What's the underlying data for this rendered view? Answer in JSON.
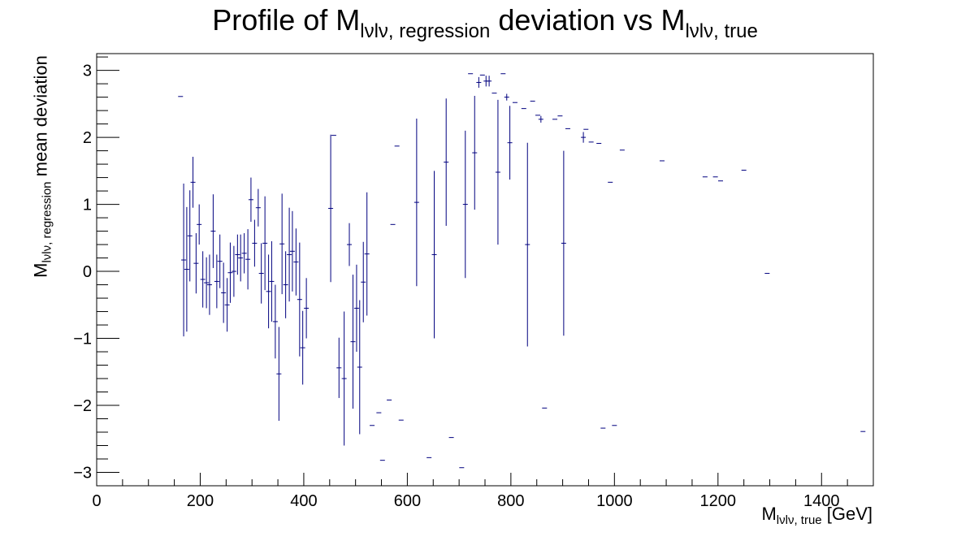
{
  "chart_data": {
    "type": "scatter",
    "title_main": "Profile of M",
    "title_sub1": "lνlν, regression",
    "title_mid": " deviation vs M",
    "title_sub2": "lνlν, true",
    "xlabel_main": "M",
    "xlabel_sub": "lνlν, true",
    "xlabel_unit": " [GeV]",
    "ylabel_main": "M",
    "ylabel_sub": "lνlν, regression",
    "ylabel_tail": " mean deviation",
    "xlim": [
      0,
      1500
    ],
    "ylim": [
      -3.2,
      3.25
    ],
    "xticks": [
      0,
      200,
      400,
      600,
      800,
      1000,
      1200,
      1400
    ],
    "yticks": [
      -3,
      -2,
      -1,
      0,
      1,
      2,
      3
    ],
    "xtick_labels": [
      "0",
      "200",
      "400",
      "600",
      "800",
      "1000",
      "1200",
      "1400"
    ],
    "ytick_labels": [
      "−3",
      "−2",
      "−1",
      "0",
      "1",
      "2",
      "3"
    ],
    "marker_color": "#00007f",
    "points": [
      {
        "x": 162,
        "y": 2.61,
        "err": 0
      },
      {
        "x": 168,
        "y": 0.17,
        "err": 1.14
      },
      {
        "x": 174,
        "y": 0.03,
        "err": 0.93
      },
      {
        "x": 180,
        "y": 0.53,
        "err": 0.68
      },
      {
        "x": 186,
        "y": 1.33,
        "err": 0.38
      },
      {
        "x": 192,
        "y": 0.12,
        "err": 0.45
      },
      {
        "x": 198,
        "y": 0.7,
        "err": 0.3
      },
      {
        "x": 205,
        "y": -0.12,
        "err": 0.42
      },
      {
        "x": 212,
        "y": -0.17,
        "err": 0.38
      },
      {
        "x": 218,
        "y": -0.2,
        "err": 0.45
      },
      {
        "x": 225,
        "y": 0.6,
        "err": 0.55
      },
      {
        "x": 232,
        "y": -0.15,
        "err": 0.4
      },
      {
        "x": 238,
        "y": 0.15,
        "err": 0.4
      },
      {
        "x": 245,
        "y": -0.32,
        "err": 0.45
      },
      {
        "x": 252,
        "y": -0.5,
        "err": 0.4
      },
      {
        "x": 258,
        "y": -0.02,
        "err": 0.45
      },
      {
        "x": 265,
        "y": 0.0,
        "err": 0.38
      },
      {
        "x": 272,
        "y": 0.25,
        "err": 0.3
      },
      {
        "x": 278,
        "y": 0.2,
        "err": 0.35
      },
      {
        "x": 285,
        "y": 0.27,
        "err": 0.3
      },
      {
        "x": 292,
        "y": 0.18,
        "err": 0.45
      },
      {
        "x": 298,
        "y": 1.07,
        "err": 0.33
      },
      {
        "x": 305,
        "y": 0.42,
        "err": 0.35
      },
      {
        "x": 312,
        "y": 0.95,
        "err": 0.28
      },
      {
        "x": 318,
        "y": -0.03,
        "err": 0.45
      },
      {
        "x": 325,
        "y": 0.42,
        "err": 0.7
      },
      {
        "x": 332,
        "y": -0.3,
        "err": 0.55
      },
      {
        "x": 338,
        "y": -0.15,
        "err": 0.6
      },
      {
        "x": 345,
        "y": -0.75,
        "err": 0.55
      },
      {
        "x": 352,
        "y": -1.53,
        "err": 0.7
      },
      {
        "x": 358,
        "y": 0.41,
        "err": 0.75
      },
      {
        "x": 365,
        "y": -0.2,
        "err": 0.5
      },
      {
        "x": 372,
        "y": 0.25,
        "err": 0.7
      },
      {
        "x": 378,
        "y": 0.3,
        "err": 0.6
      },
      {
        "x": 385,
        "y": 0.14,
        "err": 0.5
      },
      {
        "x": 392,
        "y": -0.42,
        "err": 0.85
      },
      {
        "x": 398,
        "y": -1.14,
        "err": 0.55
      },
      {
        "x": 405,
        "y": -0.55,
        "err": 0.45
      },
      {
        "x": 452,
        "y": 0.94,
        "err": 1.1
      },
      {
        "x": 458,
        "y": 2.03,
        "err": 0
      },
      {
        "x": 468,
        "y": -1.44,
        "err": 0.45
      },
      {
        "x": 478,
        "y": -1.6,
        "err": 1.0
      },
      {
        "x": 488,
        "y": 0.4,
        "err": 0.32
      },
      {
        "x": 495,
        "y": -1.05,
        "err": 1.0
      },
      {
        "x": 502,
        "y": -0.55,
        "err": 0.65
      },
      {
        "x": 508,
        "y": -1.43,
        "err": 1.0
      },
      {
        "x": 515,
        "y": -0.16,
        "err": 0.6
      },
      {
        "x": 522,
        "y": 0.26,
        "err": 0.92
      },
      {
        "x": 532,
        "y": -2.3,
        "err": 0
      },
      {
        "x": 545,
        "y": -2.11,
        "err": 0
      },
      {
        "x": 552,
        "y": -2.82,
        "err": 0
      },
      {
        "x": 565,
        "y": -1.92,
        "err": 0
      },
      {
        "x": 572,
        "y": 0.7,
        "err": 0
      },
      {
        "x": 580,
        "y": 1.87,
        "err": 0
      },
      {
        "x": 588,
        "y": -2.22,
        "err": 0
      },
      {
        "x": 618,
        "y": 1.03,
        "err": 1.25
      },
      {
        "x": 642,
        "y": -2.78,
        "err": 0
      },
      {
        "x": 652,
        "y": 0.25,
        "err": 1.25
      },
      {
        "x": 675,
        "y": 1.63,
        "err": 0.95
      },
      {
        "x": 685,
        "y": -2.48,
        "err": 0
      },
      {
        "x": 705,
        "y": -2.93,
        "err": 0
      },
      {
        "x": 712,
        "y": 1.0,
        "err": 1.1
      },
      {
        "x": 722,
        "y": 2.95,
        "err": 0
      },
      {
        "x": 730,
        "y": 1.77,
        "err": 0.85
      },
      {
        "x": 738,
        "y": 2.82,
        "err": 0.08
      },
      {
        "x": 745,
        "y": 2.93,
        "err": 0
      },
      {
        "x": 752,
        "y": 2.84,
        "err": 0.08
      },
      {
        "x": 758,
        "y": 2.84,
        "err": 0.08
      },
      {
        "x": 768,
        "y": 2.66,
        "err": 0
      },
      {
        "x": 775,
        "y": 1.48,
        "err": 1.08
      },
      {
        "x": 785,
        "y": 2.95,
        "err": 0
      },
      {
        "x": 792,
        "y": 2.6,
        "err": 0.05
      },
      {
        "x": 798,
        "y": 1.92,
        "err": 0.55
      },
      {
        "x": 808,
        "y": 2.52,
        "err": 0
      },
      {
        "x": 825,
        "y": 2.43,
        "err": 0
      },
      {
        "x": 832,
        "y": 0.4,
        "err": 1.52
      },
      {
        "x": 842,
        "y": 2.54,
        "err": 0
      },
      {
        "x": 852,
        "y": 2.33,
        "err": 0
      },
      {
        "x": 858,
        "y": 2.27,
        "err": 0.05
      },
      {
        "x": 865,
        "y": -2.04,
        "err": 0
      },
      {
        "x": 885,
        "y": 2.27,
        "err": 0
      },
      {
        "x": 895,
        "y": 2.32,
        "err": 0
      },
      {
        "x": 902,
        "y": 0.42,
        "err": 1.38
      },
      {
        "x": 910,
        "y": 2.13,
        "err": 0
      },
      {
        "x": 940,
        "y": 2.0,
        "err": 0.08
      },
      {
        "x": 945,
        "y": 2.12,
        "err": 0
      },
      {
        "x": 955,
        "y": 1.93,
        "err": 0
      },
      {
        "x": 970,
        "y": 1.91,
        "err": 0
      },
      {
        "x": 978,
        "y": -2.34,
        "err": 0
      },
      {
        "x": 992,
        "y": 1.33,
        "err": 0
      },
      {
        "x": 1000,
        "y": -2.3,
        "err": 0
      },
      {
        "x": 1015,
        "y": 1.81,
        "err": 0
      },
      {
        "x": 1092,
        "y": 1.65,
        "err": 0
      },
      {
        "x": 1175,
        "y": 1.41,
        "err": 0
      },
      {
        "x": 1195,
        "y": 1.41,
        "err": 0
      },
      {
        "x": 1205,
        "y": 1.35,
        "err": 0
      },
      {
        "x": 1250,
        "y": 1.51,
        "err": 0
      },
      {
        "x": 1295,
        "y": -0.03,
        "err": 0
      },
      {
        "x": 1480,
        "y": -2.39,
        "err": 0
      }
    ]
  }
}
